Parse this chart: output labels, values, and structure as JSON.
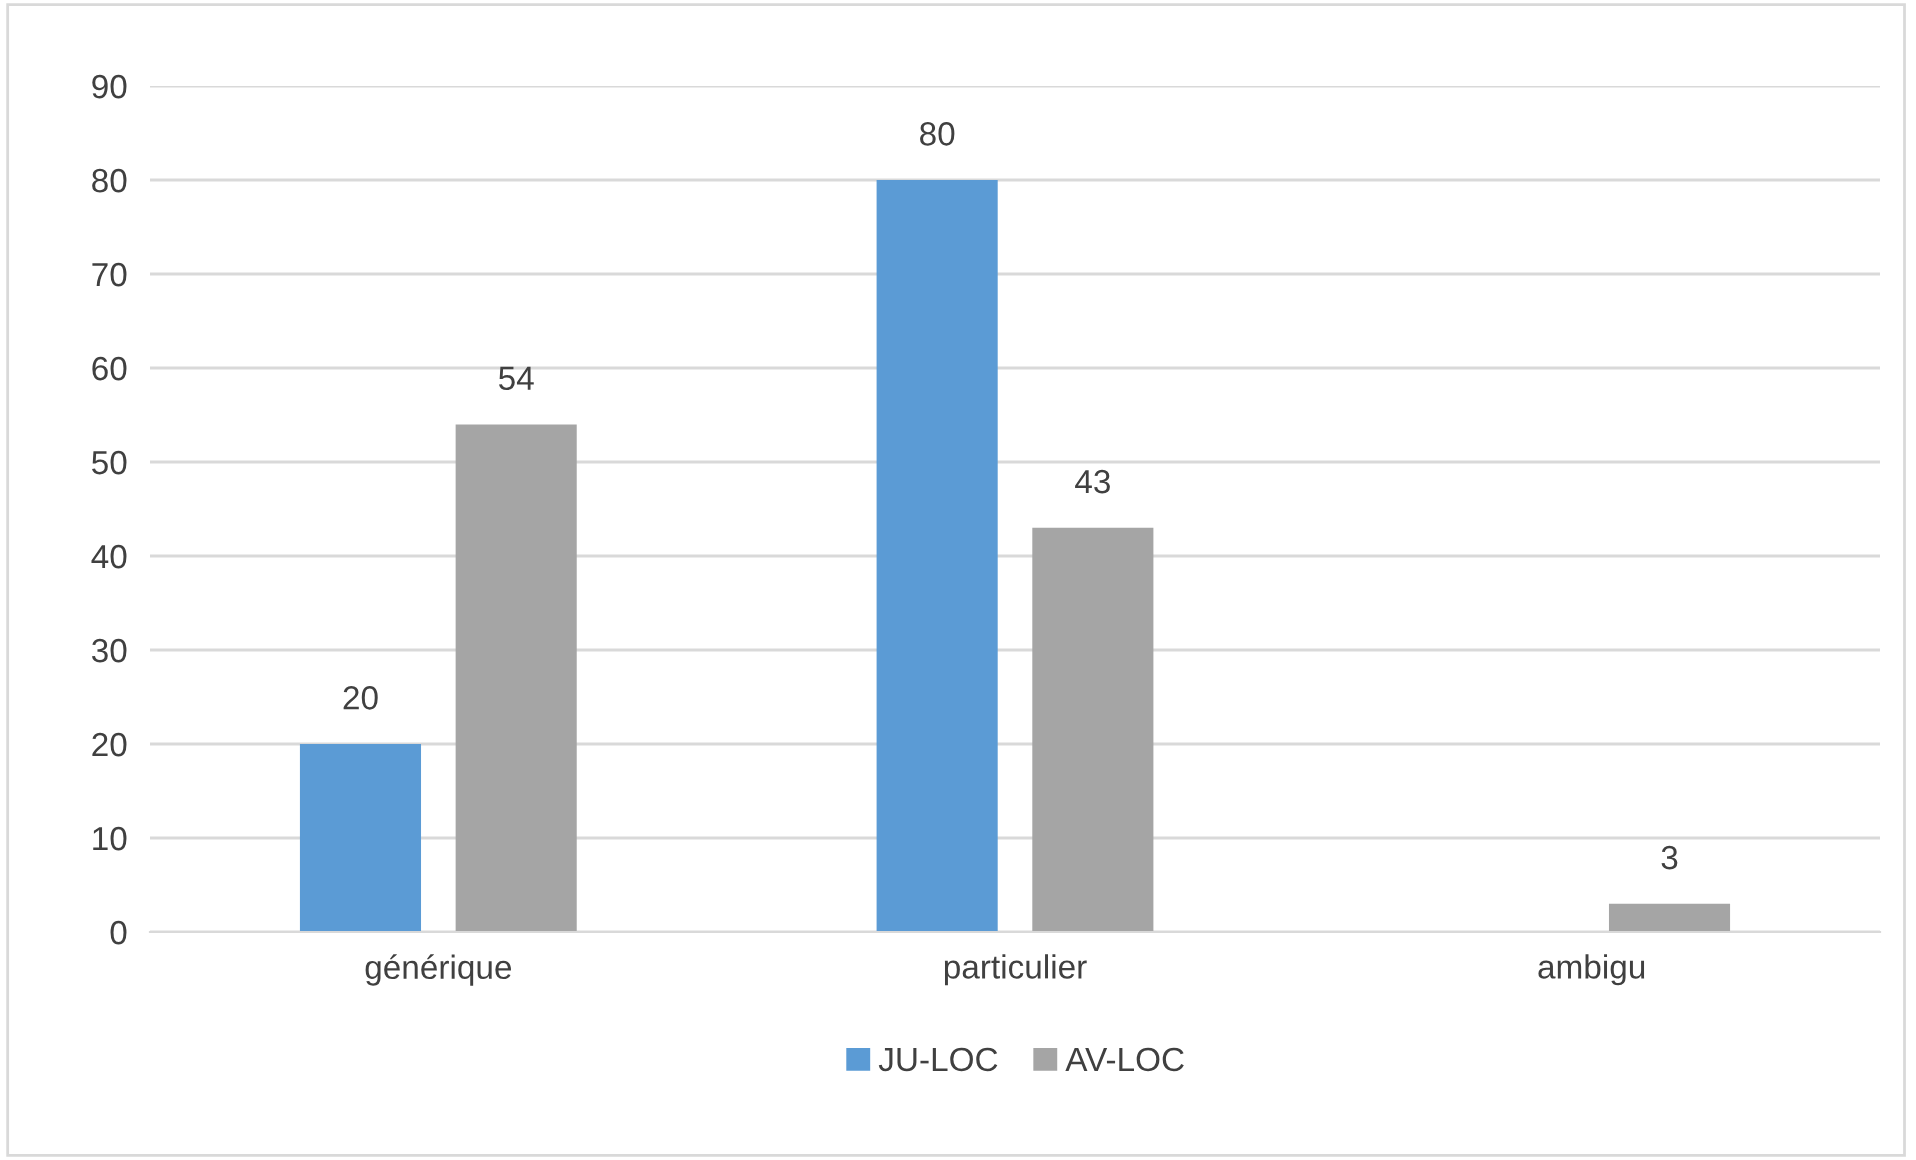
{
  "chart_data": {
    "type": "bar",
    "categories": [
      "générique",
      "particulier",
      "ambigu"
    ],
    "series": [
      {
        "name": "JU-LOC",
        "color": "#5b9bd5",
        "values": [
          20,
          80,
          null
        ]
      },
      {
        "name": "AV-LOC",
        "color": "#a5a5a5",
        "values": [
          54,
          43,
          3
        ]
      }
    ],
    "ylim": [
      0,
      90
    ],
    "yticks": [
      0,
      10,
      20,
      30,
      40,
      50,
      60,
      70,
      80,
      90
    ],
    "grid": "y",
    "legend": "bottom",
    "data_labels": true
  }
}
